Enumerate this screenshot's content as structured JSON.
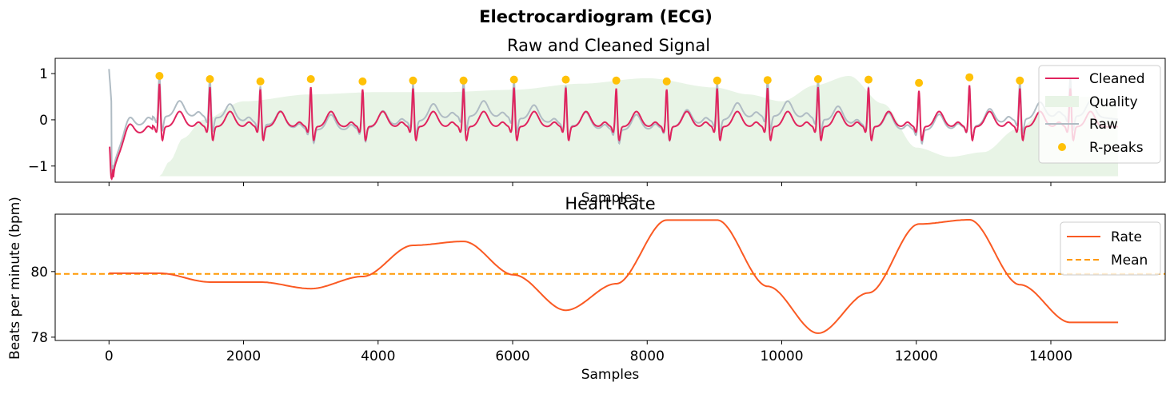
{
  "figure": {
    "title": "Electrocardiogram (ECG)"
  },
  "colors": {
    "cleaned": "#e0245e",
    "quality": "#e8f4e6",
    "raw": "#b0bcc4",
    "rpeaks": "#ffc107",
    "rate": "#fa5a23",
    "mean": "#ff9800"
  },
  "chart_data": [
    {
      "type": "line",
      "title": "Raw and Cleaned Signal",
      "xlabel": "Samples",
      "ylabel": "",
      "xlim": [
        -800,
        15700
      ],
      "ylim": [
        -1.35,
        1.33
      ],
      "yticks": [
        -1,
        0,
        1
      ],
      "ytick_labels": [
        "−1",
        "0",
        "1"
      ],
      "xticks": [
        0,
        2000,
        4000,
        6000,
        8000,
        10000,
        12000,
        14000
      ],
      "legend": {
        "position": "top-right",
        "entries": [
          "Cleaned",
          "Quality",
          "Raw",
          "R-peaks"
        ]
      },
      "rpeaks": {
        "x": [
          750,
          1500,
          2250,
          3000,
          3770,
          4520,
          5270,
          6020,
          6790,
          7540,
          8290,
          9040,
          9790,
          10540,
          11290,
          12040,
          12790,
          13540
        ],
        "y": [
          0.95,
          0.88,
          0.83,
          0.88,
          0.83,
          0.85,
          0.85,
          0.87,
          0.87,
          0.85,
          0.83,
          0.85,
          0.86,
          0.88,
          0.87,
          0.8,
          0.92,
          0.85
        ]
      },
      "quality": {
        "baseline": -1.22,
        "x": [
          750,
          900,
          1100,
          1400,
          2000,
          3000,
          4000,
          5000,
          6000,
          7000,
          8000,
          9000,
          9500,
          10000,
          10500,
          11000,
          11500,
          12000,
          12500,
          13000,
          13500,
          14000,
          14500,
          15000
        ],
        "y": [
          -1.22,
          -0.9,
          -0.4,
          0.0,
          0.4,
          0.55,
          0.6,
          0.6,
          0.65,
          0.78,
          0.9,
          0.7,
          0.55,
          0.4,
          0.75,
          0.95,
          0.35,
          -0.6,
          -0.8,
          -0.7,
          -0.2,
          0.35,
          0.5,
          0.4
        ]
      }
    },
    {
      "type": "line",
      "title": "Heart Rate",
      "xlabel": "Samples",
      "ylabel": "Beats per minute (bpm)",
      "xlim": [
        -800,
        15700
      ],
      "ylim": [
        77.9,
        81.75
      ],
      "yticks": [
        78,
        80
      ],
      "xticks": [
        0,
        2000,
        4000,
        6000,
        8000,
        10000,
        12000,
        14000
      ],
      "legend": {
        "position": "top-right",
        "entries": [
          "Rate",
          "Mean"
        ]
      },
      "mean": 79.93,
      "series": [
        {
          "name": "Rate",
          "x": [
            0,
            750,
            1500,
            2250,
            3000,
            3770,
            4520,
            5270,
            6020,
            6790,
            7540,
            8290,
            9040,
            9790,
            10540,
            11290,
            12040,
            12790,
            13540,
            14290,
            15000
          ],
          "y": [
            79.95,
            79.95,
            79.68,
            79.68,
            79.48,
            79.85,
            80.8,
            80.92,
            79.9,
            78.82,
            79.63,
            81.57,
            81.57,
            79.55,
            78.12,
            79.35,
            81.45,
            81.58,
            79.6,
            78.45,
            78.45
          ]
        }
      ]
    }
  ]
}
